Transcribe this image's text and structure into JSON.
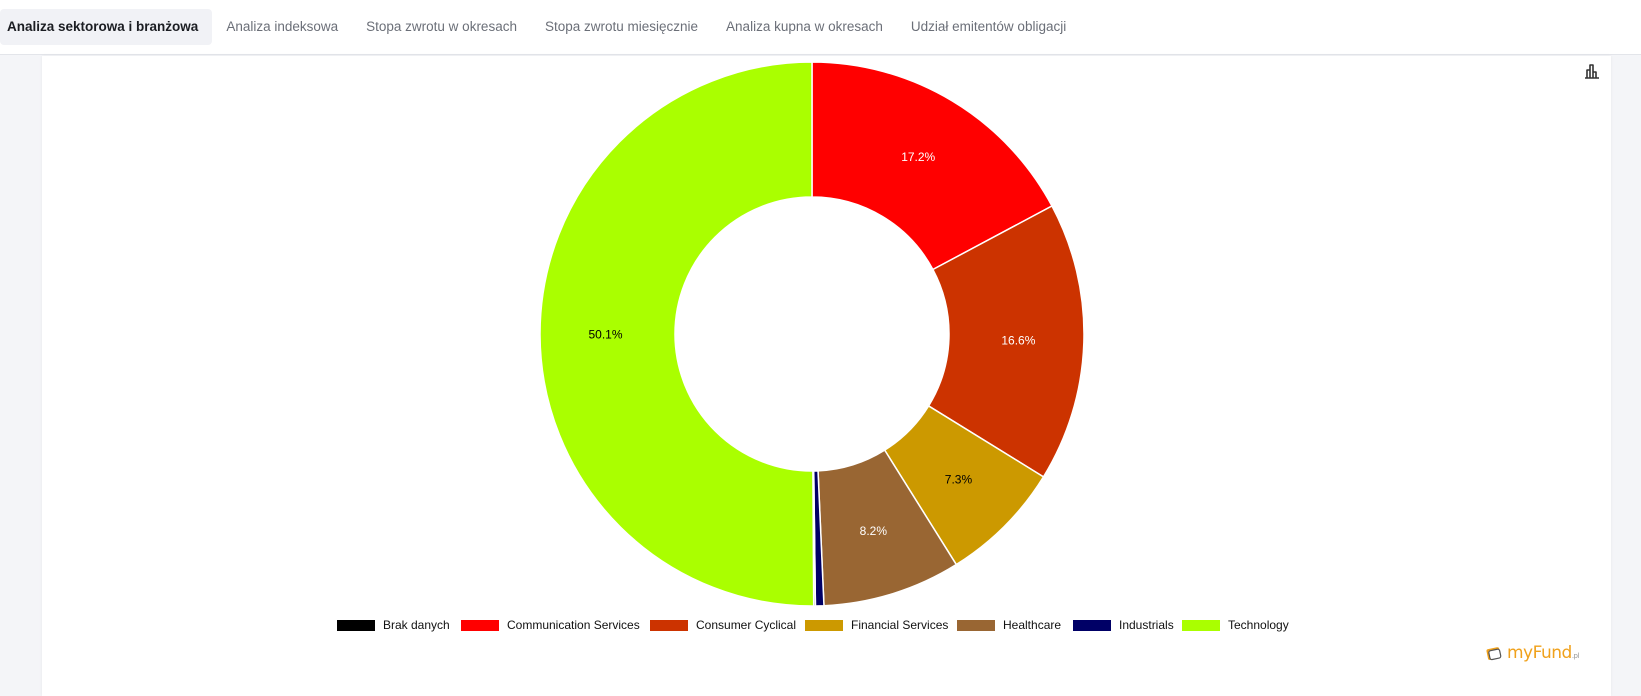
{
  "tabs": [
    {
      "label": "Analiza sektorowa i branżowa",
      "active": true
    },
    {
      "label": "Analiza indeksowa",
      "active": false
    },
    {
      "label": "Stopa zwrotu w okresach",
      "active": false
    },
    {
      "label": "Stopa zwrotu miesięcznie",
      "active": false
    },
    {
      "label": "Analiza kupna w okresach",
      "active": false
    },
    {
      "label": "Udział emitentów obligacji",
      "active": false
    }
  ],
  "logo": {
    "text": "myFund",
    "suffix": ".pl"
  },
  "chart_data": {
    "type": "pie",
    "variant": "donut",
    "legend_position": "bottom",
    "start_angle": "12 o'clock, clockwise",
    "categories": [
      "Brak danych",
      "Communication Services",
      "Consumer Cyclical",
      "Financial Services",
      "Healthcare",
      "Industrials",
      "Technology"
    ],
    "values": [
      0.1,
      17.2,
      16.6,
      7.3,
      8.2,
      0.5,
      50.1
    ],
    "labels": [
      "",
      "17.2%",
      "16.6%",
      "7.3%",
      "8.2%",
      "",
      "50.1%"
    ],
    "colors": [
      "#000000",
      "#ff0000",
      "#cc3300",
      "#cc9900",
      "#996633",
      "#000066",
      "#aaff00"
    ],
    "label_colors": [
      "#ffffff",
      "#ffffff",
      "#ffffff",
      "#000000",
      "#ffffff",
      "#ffffff",
      "#000000"
    ],
    "slice_order": [
      "Communication Services",
      "Consumer Cyclical",
      "Financial Services",
      "Healthcare",
      "Industrials",
      "Brak danych",
      "Technology"
    ]
  }
}
